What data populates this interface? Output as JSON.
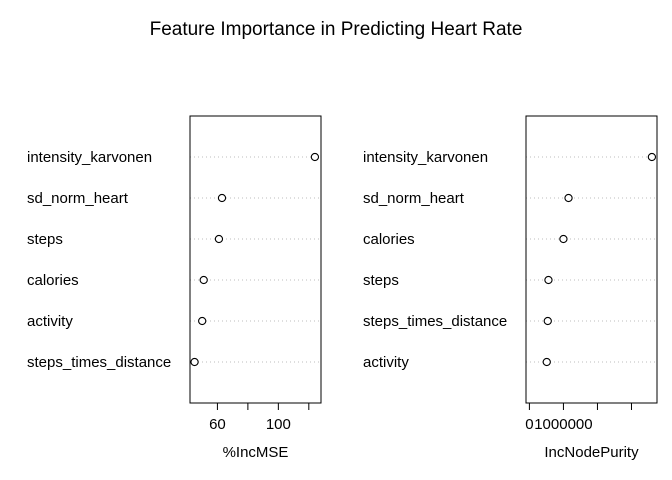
{
  "chart_data": {
    "title": "Feature Importance in Predicting Heart Rate",
    "panels": [
      {
        "type": "dotchart",
        "xlabel": "%IncMSE",
        "xlim": [
          42,
          128
        ],
        "xticks": [
          40,
          60,
          80,
          100,
          120
        ],
        "xtick_labels": [
          "",
          "60",
          "",
          "100",
          ""
        ],
        "points": [
          {
            "label": "intensity_karvonen",
            "value": 124
          },
          {
            "label": "sd_norm_heart",
            "value": 63
          },
          {
            "label": "steps",
            "value": 61
          },
          {
            "label": "calories",
            "value": 51
          },
          {
            "label": "activity",
            "value": 50
          },
          {
            "label": "steps_times_distance",
            "value": 45
          }
        ]
      },
      {
        "type": "dotchart",
        "xlabel": "IncNodePurity",
        "xlim": [
          -100000,
          3750000
        ],
        "xticks": [
          0,
          1000000,
          2000000,
          3000000
        ],
        "xtick_labels": [
          "0",
          "1000000",
          "",
          ""
        ],
        "points": [
          {
            "label": "intensity_karvonen",
            "value": 3600000
          },
          {
            "label": "sd_norm_heart",
            "value": 1150000
          },
          {
            "label": "calories",
            "value": 1000000
          },
          {
            "label": "steps",
            "value": 560000
          },
          {
            "label": "steps_times_distance",
            "value": 540000
          },
          {
            "label": "activity",
            "value": 510000
          }
        ]
      }
    ]
  }
}
